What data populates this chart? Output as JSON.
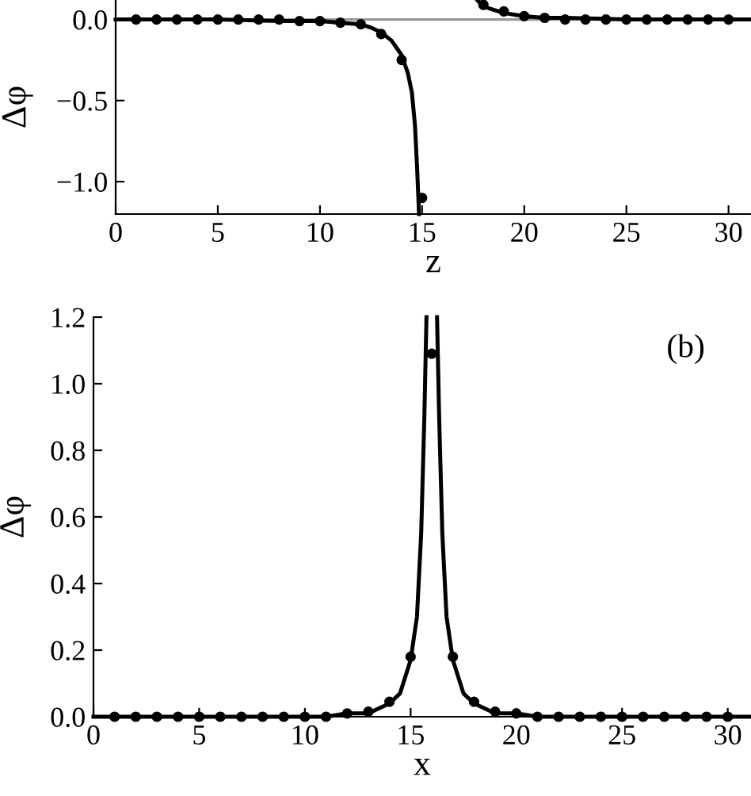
{
  "chart_data": [
    {
      "type": "line",
      "xlabel": "z",
      "ylabel": "Δφ",
      "xlim": [
        0,
        31.1
      ],
      "ylim": [
        -1.2,
        0.12
      ],
      "xticks": [
        0,
        5,
        10,
        15,
        20,
        25,
        30
      ],
      "yticks": [
        {
          "value": 0,
          "label": "0.0"
        },
        {
          "value": -0.5,
          "label": "−0.5"
        },
        {
          "value": -1.0,
          "label": "−1.0"
        }
      ],
      "ref_lines": [
        {
          "axis": "y",
          "value": 0,
          "color": "#999999"
        }
      ],
      "series": [
        {
          "color": "#000000",
          "x": [
            0,
            5,
            8,
            10,
            11,
            12,
            12.5,
            13,
            13.5,
            14,
            14.3,
            14.5,
            14.65,
            14.75,
            14.85,
            null,
            17.7,
            18,
            18.5,
            19,
            20,
            21,
            22,
            25,
            28,
            31.1
          ],
          "values": [
            0,
            0,
            -0.01,
            -0.01,
            -0.02,
            -0.03,
            -0.05,
            -0.08,
            -0.13,
            -0.22,
            -0.33,
            -0.45,
            -0.65,
            -0.9,
            -1.2,
            null,
            0.12,
            0.08,
            0.06,
            0.04,
            0.02,
            0.01,
            0.01,
            0,
            0,
            0
          ]
        },
        {
          "type": "scatter",
          "color": "#000000",
          "marker": "circle",
          "x": [
            1,
            2,
            3,
            4,
            5,
            6,
            7,
            8,
            9,
            10,
            11,
            12,
            13,
            14,
            15,
            18,
            19,
            20,
            21,
            22,
            23,
            24,
            25,
            26,
            27,
            28,
            29,
            30
          ],
          "values": [
            0,
            0,
            0,
            0,
            0,
            0,
            0,
            0,
            -0.01,
            -0.01,
            -0.02,
            -0.03,
            -0.09,
            -0.25,
            -1.1,
            0.09,
            0.05,
            0.02,
            0.01,
            0,
            0,
            0,
            0,
            0,
            0,
            0,
            0,
            0
          ]
        }
      ]
    },
    {
      "type": "line",
      "xlabel": "x",
      "ylabel": "Δφ",
      "xlim": [
        0,
        31.1
      ],
      "ylim": [
        0,
        1.2
      ],
      "xticks": [
        0,
        5,
        10,
        15,
        20,
        25,
        30
      ],
      "yticks": [
        {
          "value": 0,
          "label": "0.0"
        },
        {
          "value": 0.2,
          "label": "0.2"
        },
        {
          "value": 0.4,
          "label": "0.4"
        },
        {
          "value": 0.6,
          "label": "0.6"
        },
        {
          "value": 0.8,
          "label": "0.8"
        },
        {
          "value": 1.0,
          "label": "1.0"
        },
        {
          "value": 1.2,
          "label": "1.2"
        }
      ],
      "annotations": [
        "(b)"
      ],
      "series": [
        {
          "color": "#000000",
          "x": [
            0,
            11,
            12,
            13,
            14,
            14.5,
            15,
            15.3,
            15.5,
            15.65,
            15.75,
            null,
            16.25,
            16.35,
            16.5,
            16.7,
            17,
            17.5,
            18,
            19,
            20,
            21,
            31.1
          ],
          "values": [
            0,
            0,
            0.01,
            0.01,
            0.04,
            0.07,
            0.17,
            0.3,
            0.55,
            0.9,
            1.2,
            null,
            1.2,
            0.9,
            0.55,
            0.3,
            0.17,
            0.07,
            0.04,
            0.01,
            0.01,
            0,
            0
          ]
        },
        {
          "type": "scatter",
          "color": "#000000",
          "marker": "circle",
          "x": [
            1,
            2,
            3,
            4,
            5,
            6,
            7,
            8,
            9,
            10,
            11,
            12,
            13,
            14,
            15,
            16,
            17,
            18,
            19,
            20,
            21,
            22,
            23,
            24,
            25,
            26,
            27,
            28,
            29,
            30
          ],
          "values": [
            0,
            0,
            0,
            0,
            0,
            0,
            0,
            0,
            0,
            0,
            0,
            0.01,
            0.015,
            0.045,
            0.18,
            1.09,
            0.18,
            0.045,
            0.015,
            0.01,
            0,
            0,
            0,
            0,
            0,
            0,
            0,
            0,
            0,
            0
          ]
        }
      ]
    }
  ]
}
